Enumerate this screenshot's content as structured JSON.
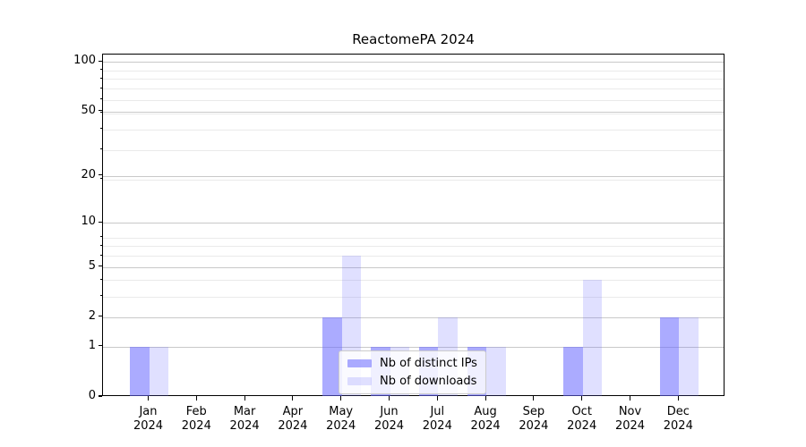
{
  "figure": {
    "title": "ReactomePA 2024",
    "background": "#ffffff"
  },
  "chart_data": {
    "type": "bar",
    "title": "ReactomePA 2024",
    "categories": [
      {
        "month": "Jan",
        "year": "2024"
      },
      {
        "month": "Feb",
        "year": "2024"
      },
      {
        "month": "Mar",
        "year": "2024"
      },
      {
        "month": "Apr",
        "year": "2024"
      },
      {
        "month": "May",
        "year": "2024"
      },
      {
        "month": "Jun",
        "year": "2024"
      },
      {
        "month": "Jul",
        "year": "2024"
      },
      {
        "month": "Aug",
        "year": "2024"
      },
      {
        "month": "Sep",
        "year": "2024"
      },
      {
        "month": "Oct",
        "year": "2024"
      },
      {
        "month": "Nov",
        "year": "2024"
      },
      {
        "month": "Dec",
        "year": "2024"
      }
    ],
    "series": [
      {
        "name": "Nb of distinct IPs",
        "color": "rgba(102,102,255,0.55)",
        "values": [
          1,
          0,
          0,
          0,
          2,
          1,
          1,
          1,
          0,
          1,
          0,
          2
        ]
      },
      {
        "name": "Nb of downloads",
        "color": "rgba(102,102,255,0.20)",
        "values": [
          1,
          0,
          0,
          0,
          6,
          1,
          2,
          1,
          0,
          4,
          0,
          2
        ]
      }
    ],
    "xlabel": "",
    "ylabel": "",
    "yticks": [
      0,
      1,
      2,
      5,
      10,
      20,
      50,
      100
    ],
    "minor_grid_values": [
      3,
      4,
      6,
      7,
      8,
      19,
      29,
      39,
      49,
      59,
      69,
      79,
      89
    ],
    "scale": "log10(1+v)",
    "ylim": [
      0,
      110
    ],
    "grid": "on",
    "legend_position": "lower center"
  },
  "colors": {
    "major_grid": "#c9c9c9",
    "minor_grid": "#eaeaea",
    "axis": "#000000",
    "text": "#000000",
    "legend_border": "#cccccc"
  }
}
